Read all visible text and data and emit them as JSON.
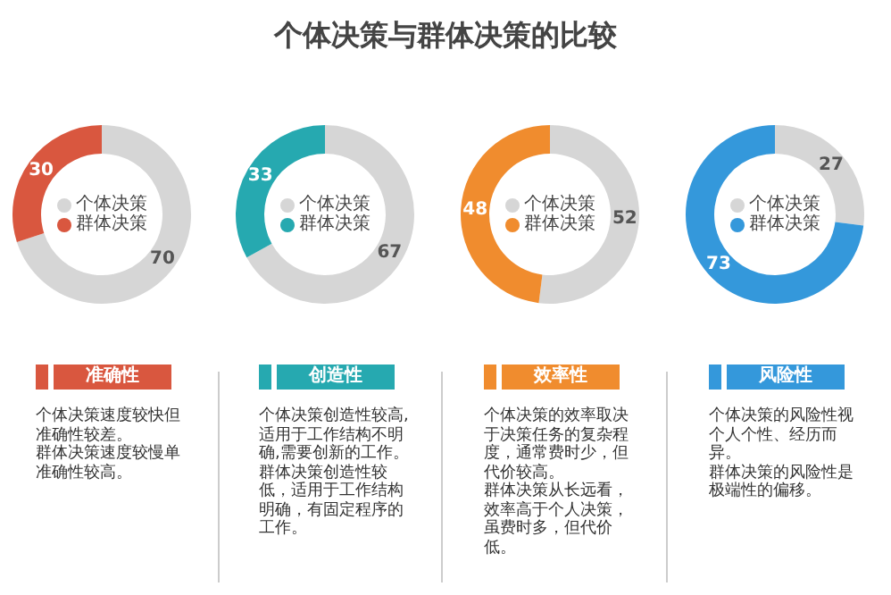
{
  "chart_data": [
    {
      "type": "other",
      "title": "个体决策与群体决策的比较"
    },
    {
      "type": "donut",
      "subtitle": "准确性",
      "categories": [
        "个体决策",
        "群体决策"
      ],
      "values": [
        70,
        30
      ],
      "colors": [
        "#d6d6d6",
        "#d9573f"
      ],
      "legend": "center",
      "data_labels": true,
      "annotations": [
        "个体决策速度较快但准确性较差。",
        "群体决策速度较慢单准确性较高。"
      ]
    },
    {
      "type": "donut",
      "subtitle": "创造性",
      "categories": [
        "个体决策",
        "群体决策"
      ],
      "values": [
        67,
        33
      ],
      "colors": [
        "#d6d6d6",
        "#26a9b0"
      ],
      "legend": "center",
      "data_labels": true,
      "annotations": [
        "个体决策创造性较高,适用于工作结构不明确,需要创新的工作。",
        "群体决策创造性较低，适用于工作结构明确，有固定程序的工作。"
      ]
    },
    {
      "type": "donut",
      "subtitle": "效率性",
      "categories": [
        "个体决策",
        "群体决策"
      ],
      "values": [
        52,
        48
      ],
      "colors": [
        "#d6d6d6",
        "#f08c2e"
      ],
      "legend": "center",
      "data_labels": true,
      "annotations": [
        "个体决策的效率取决于决策任务的复杂程度，通常费时少，但代价较高。",
        "群体决策从长远看，效率高于个人决策，虽费时多，但代价低。"
      ]
    },
    {
      "type": "donut",
      "subtitle": "风险性",
      "categories": [
        "个体决策",
        "群体决策"
      ],
      "values": [
        27,
        73
      ],
      "colors": [
        "#d6d6d6",
        "#3498db"
      ],
      "legend": "center",
      "data_labels": true,
      "annotations": [
        "个体决策的风险性视个人个性、经历而异。",
        "群体决策的风险性是极端性的偏移。"
      ]
    }
  ]
}
